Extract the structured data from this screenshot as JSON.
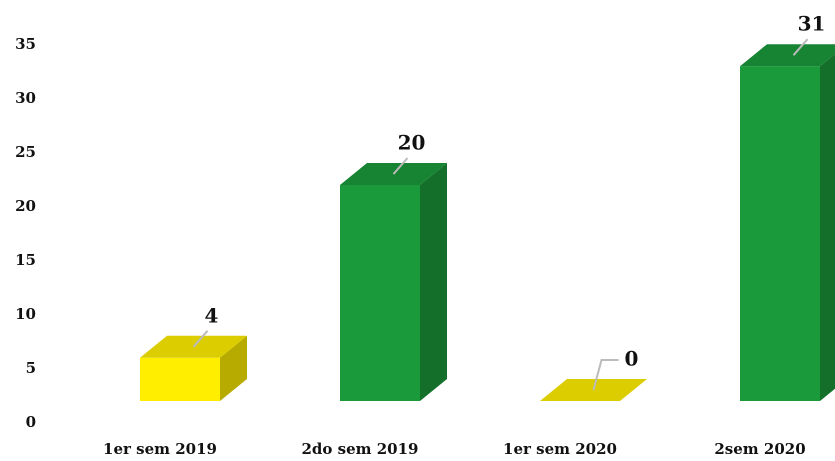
{
  "chart_data": {
    "type": "bar3d",
    "categories": [
      "1er sem 2019",
      "2do sem 2019",
      "1er sem 2020",
      "2sem 2020"
    ],
    "values": [
      4,
      20,
      0,
      31
    ],
    "colors": [
      "#ffee00",
      "#1a9a3a",
      "#ffee00",
      "#1a9a3a"
    ],
    "ylim": [
      0,
      35
    ],
    "yticks": [
      0,
      5,
      10,
      15,
      20,
      25,
      30,
      35
    ],
    "grid": false
  }
}
